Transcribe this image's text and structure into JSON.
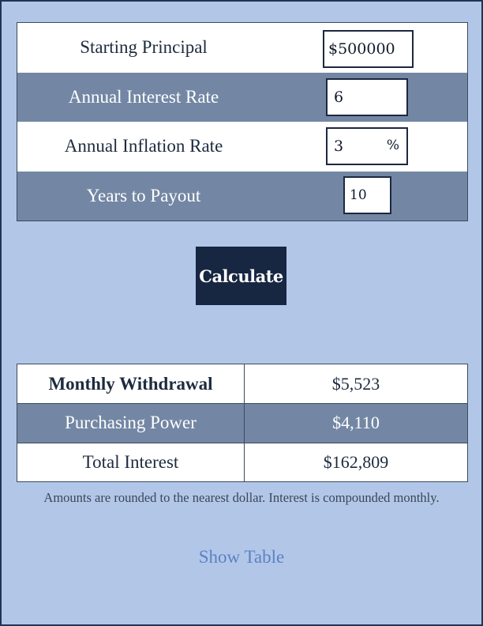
{
  "inputs": {
    "principal": {
      "label": "Starting Principal",
      "value": "$500000"
    },
    "interest_rate": {
      "label": "Annual Interest Rate",
      "value": "6"
    },
    "inflation_rate": {
      "label": "Annual Inflation Rate",
      "value": "3",
      "unit": "%"
    },
    "years": {
      "label": "Years to Payout",
      "value": "10"
    }
  },
  "calculate_label": "Calculate",
  "results": {
    "monthly_withdrawal": {
      "label": "Monthly Withdrawal",
      "value": "$5,523"
    },
    "purchasing_power": {
      "label": "Purchasing Power",
      "value": "$4,110"
    },
    "total_interest": {
      "label": "Total Interest",
      "value": "$162,809"
    }
  },
  "footnote": "Amounts are rounded to the nearest dollar. Interest is compounded monthly.",
  "show_table_label": "Show Table",
  "colors": {
    "background": "#b2c7e8",
    "row_dark": "#7387a4",
    "button": "#172641",
    "link": "#5b82c4"
  }
}
